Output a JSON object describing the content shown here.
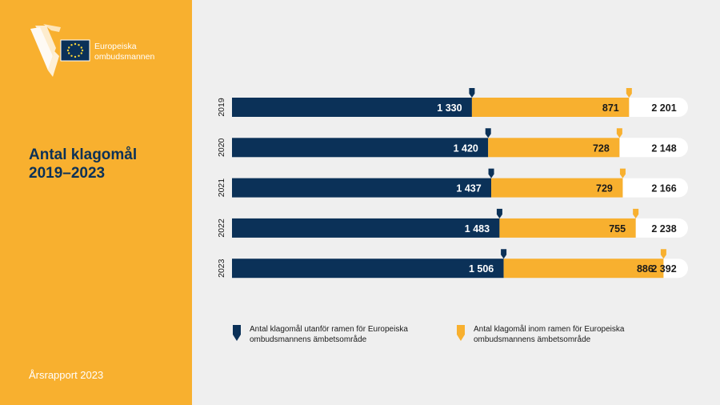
{
  "brand": {
    "line1": "Europeiska",
    "line2": "ombudsmannen",
    "colors": {
      "navy": "#0b3158",
      "orange": "#f8b02f",
      "white": "#ffffff"
    }
  },
  "title": {
    "line1": "Antal klagomål",
    "line2": "2019–2023"
  },
  "footer": {
    "text": "Årsrapport 2023"
  },
  "chart_data": {
    "type": "bar",
    "orientation": "horizontal-stacked",
    "categories": [
      "2019",
      "2020",
      "2021",
      "2022",
      "2023"
    ],
    "series": [
      {
        "name": "Antal klagomål utanför ramen för Europeiska ombudsmannens ämbetsområde",
        "color": "#0b3158",
        "values": [
          1330,
          1420,
          1437,
          1483,
          1506
        ],
        "labels": [
          "1 330",
          "1 420",
          "1 437",
          "1 483",
          "1 506"
        ]
      },
      {
        "name": "Antal klagomål inom ramen för Europeiska ombudsmannens ämbetsområde",
        "color": "#f8b02f",
        "values": [
          871,
          728,
          729,
          755,
          886
        ],
        "labels": [
          "871",
          "728",
          "729",
          "755",
          "886"
        ]
      }
    ],
    "totals": [
      2201,
      2148,
      2166,
      2238,
      2392
    ],
    "total_labels": [
      "2 201",
      "2 148",
      "2 166",
      "2 238",
      "2 392"
    ],
    "legend": [
      {
        "line1": "Antal klagomål utanför ramen för Europeiska",
        "line2": "ombudsmannens ämbetsområde"
      },
      {
        "line1": "Antal klagomål inom ramen för Europeiska",
        "line2": "ombudsmannens ämbetsområde"
      }
    ]
  }
}
